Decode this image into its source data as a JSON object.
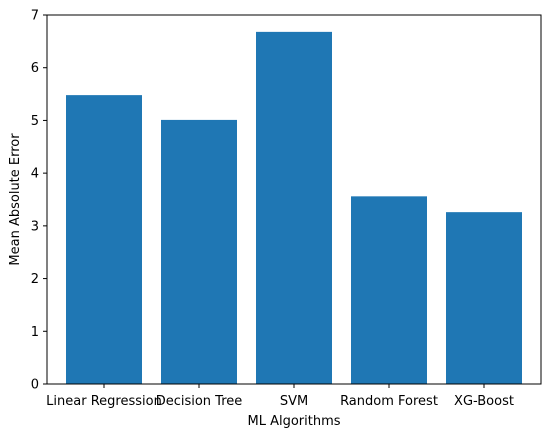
{
  "chart_data": {
    "type": "bar",
    "categories": [
      "Linear Regression",
      "Decision Tree",
      "SVM",
      "Random Forest",
      "XG-Boost"
    ],
    "values": [
      5.48,
      5.01,
      6.68,
      3.56,
      3.26
    ],
    "xlabel": "ML Algorithms",
    "ylabel": "Mean Absolute Error",
    "ylim": [
      0,
      7
    ],
    "yticks": [
      0,
      1,
      2,
      3,
      4,
      5,
      6,
      7
    ],
    "bar_color": "#1f77b4",
    "grid": false
  }
}
